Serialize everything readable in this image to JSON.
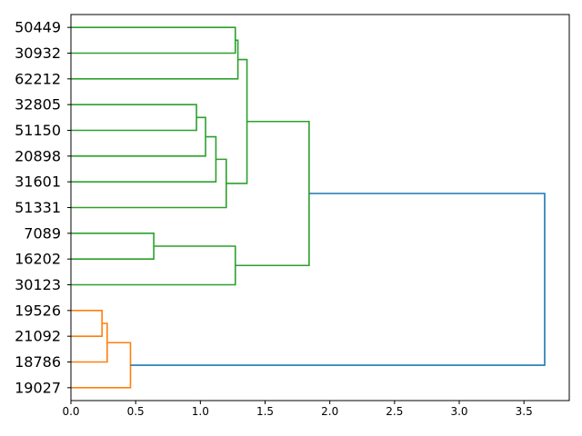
{
  "chart_data": {
    "type": "dendrogram",
    "orientation": "left",
    "title": "",
    "xlabel": "",
    "ylabel": "",
    "xlim": [
      0,
      3.85
    ],
    "x_ticks": [
      0.0,
      0.5,
      1.0,
      1.5,
      2.0,
      2.5,
      3.0,
      3.5
    ],
    "x_tick_labels": [
      "0.0",
      "0.5",
      "1.0",
      "1.5",
      "2.0",
      "2.5",
      "3.0",
      "3.5"
    ],
    "grid": false,
    "leaves": [
      "50449",
      "30932",
      "62212",
      "32805",
      "51150",
      "20898",
      "31601",
      "51331",
      "7089",
      "16202",
      "30123",
      "19526",
      "21092",
      "18786",
      "19027"
    ],
    "colors": {
      "green": "#2ca02c",
      "orange": "#ff7f0e",
      "blue": "#1f77b4"
    },
    "merges": [
      {
        "id": "m1",
        "left": "L0",
        "right": "L1",
        "height": 1.27,
        "color": "green"
      },
      {
        "id": "m2",
        "left": "m1",
        "right": "L2",
        "height": 1.29,
        "color": "green"
      },
      {
        "id": "m3",
        "left": "L3",
        "right": "L4",
        "height": 0.97,
        "color": "green"
      },
      {
        "id": "m4",
        "left": "m3",
        "right": "L5",
        "height": 1.04,
        "color": "green"
      },
      {
        "id": "m5",
        "left": "m4",
        "right": "L6",
        "height": 1.12,
        "color": "green"
      },
      {
        "id": "m6",
        "left": "m5",
        "right": "L7",
        "height": 1.2,
        "color": "green"
      },
      {
        "id": "m7",
        "left": "m2",
        "right": "m6",
        "height": 1.36,
        "color": "green"
      },
      {
        "id": "m8",
        "left": "L8",
        "right": "L9",
        "height": 0.64,
        "color": "green"
      },
      {
        "id": "m9",
        "left": "m8",
        "right": "L10",
        "height": 1.27,
        "color": "green"
      },
      {
        "id": "m10",
        "left": "m7",
        "right": "m9",
        "height": 1.84,
        "color": "green"
      },
      {
        "id": "m11",
        "left": "L11",
        "right": "L12",
        "height": 0.24,
        "color": "orange"
      },
      {
        "id": "m12",
        "left": "m11",
        "right": "L13",
        "height": 0.28,
        "color": "orange"
      },
      {
        "id": "m13",
        "left": "m12",
        "right": "L14",
        "height": 0.46,
        "color": "orange"
      },
      {
        "id": "m14",
        "left": "m10",
        "right": "m13",
        "height": 3.66,
        "color": "blue"
      }
    ]
  }
}
